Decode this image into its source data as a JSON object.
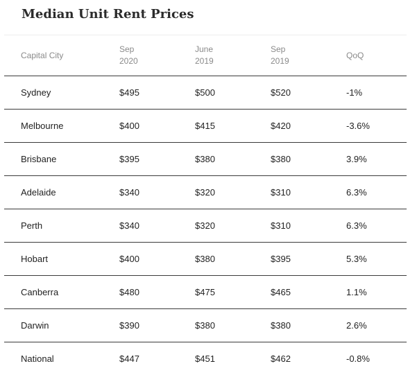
{
  "title": "Median Unit Rent Prices",
  "columns": [
    {
      "line1": "Capital City",
      "line2": ""
    },
    {
      "line1": "Sep",
      "line2": "2020"
    },
    {
      "line1": "June",
      "line2": "2019"
    },
    {
      "line1": "Sep",
      "line2": "2019"
    },
    {
      "line1": "QoQ",
      "line2": ""
    }
  ],
  "rows": [
    {
      "city": "Sydney",
      "sep2020": "$495",
      "june2019": "$500",
      "sep2019": "$520",
      "qoq": "-1%"
    },
    {
      "city": "Melbourne",
      "sep2020": "$400",
      "june2019": "$415",
      "sep2019": "$420",
      "qoq": "-3.6%"
    },
    {
      "city": "Brisbane",
      "sep2020": "$395",
      "june2019": "$380",
      "sep2019": "$380",
      "qoq": "3.9%"
    },
    {
      "city": "Adelaide",
      "sep2020": "$340",
      "june2019": "$320",
      "sep2019": "$310",
      "qoq": "6.3%"
    },
    {
      "city": "Perth",
      "sep2020": "$340",
      "june2019": "$320",
      "sep2019": "$310",
      "qoq": "6.3%"
    },
    {
      "city": "Hobart",
      "sep2020": "$400",
      "june2019": "$380",
      "sep2019": "$395",
      "qoq": "5.3%"
    },
    {
      "city": "Canberra",
      "sep2020": "$480",
      "june2019": "$475",
      "sep2019": "$465",
      "qoq": "1.1%"
    },
    {
      "city": "Darwin",
      "sep2020": "$390",
      "june2019": "$380",
      "sep2019": "$380",
      "qoq": "2.6%"
    },
    {
      "city": "National",
      "sep2020": "$447",
      "june2019": "$451",
      "sep2019": "$462",
      "qoq": "-0.8%"
    }
  ]
}
